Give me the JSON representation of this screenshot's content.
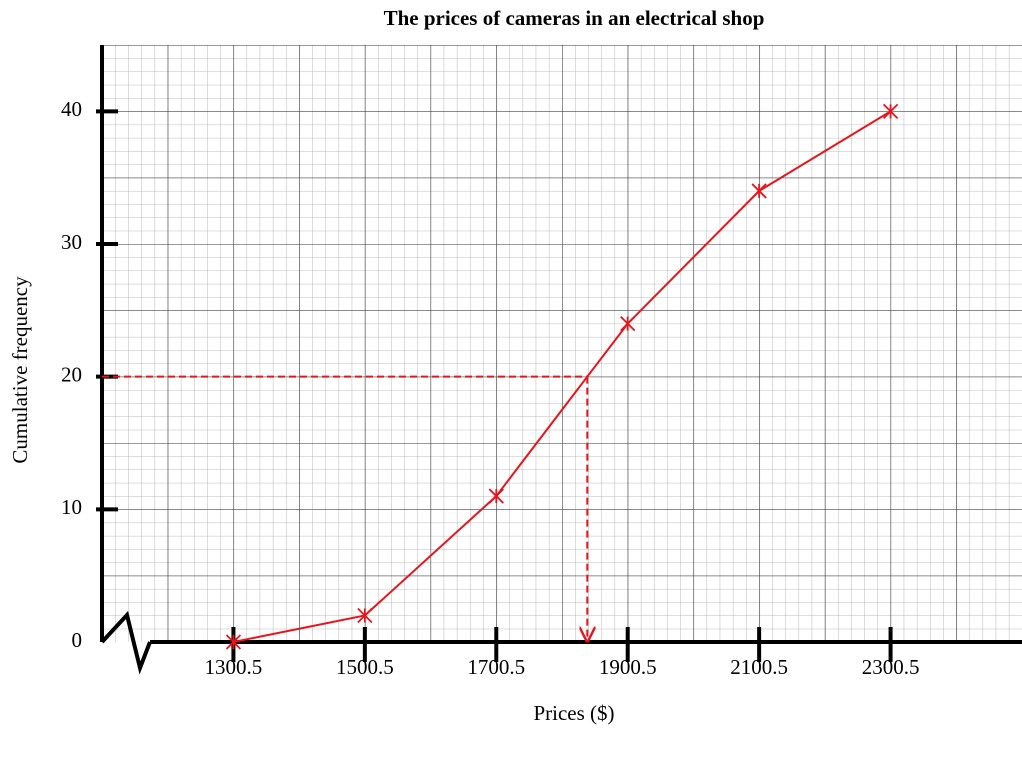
{
  "chart_data": {
    "type": "line",
    "title": "The prices of cameras in an electrical shop",
    "x_label": "Prices ($)",
    "y_label": "Cumulative frequency",
    "x": [
      1300.5,
      1500.5,
      1700.5,
      1900.5,
      2100.5,
      2300.5
    ],
    "series": [
      {
        "name": "Cumulative frequency",
        "color": "#e8141b",
        "values": [
          0,
          2,
          11,
          24,
          34,
          40
        ]
      }
    ],
    "xlim": [
      1100.5,
      2500.5
    ],
    "ylim": [
      0,
      45
    ],
    "xticks": [
      1300.5,
      1500.5,
      1700.5,
      1900.5,
      2100.5,
      2300.5
    ],
    "yticks": [
      0,
      10,
      20,
      30,
      40
    ],
    "grid": true,
    "reading": {
      "x": 1839,
      "y": 20
    }
  }
}
